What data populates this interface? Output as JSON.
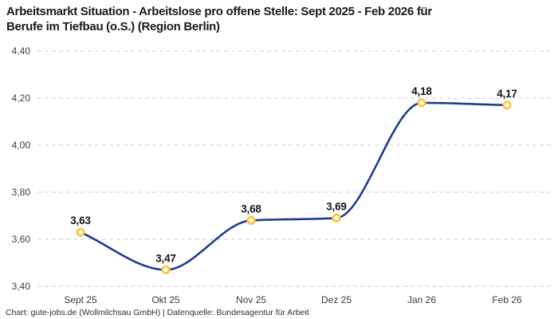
{
  "header": {
    "title_line1": "Arbeitsmarkt Situation - Arbeitslose pro offene Stelle: Sept 2025 - Feb 2026 für",
    "title_line2": "Berufe im Tiefbau (o.S.) (Region Berlin)"
  },
  "footer": {
    "credit": "Chart: gute-jobs.de (Wollmilchsau GmbH) | Datenquelle: Bundesagentur für Arbeit"
  },
  "chart_data": {
    "type": "line",
    "title": "Arbeitsmarkt Situation - Arbeitslose pro offene Stelle: Sept 2025 - Feb 2026 für Berufe im Tiefbau (o.S.) (Region Berlin)",
    "categories": [
      "Sept 25",
      "Okt 25",
      "Nov 25",
      "Dez 25",
      "Jan 26",
      "Feb 26"
    ],
    "values": [
      3.63,
      3.47,
      3.68,
      3.69,
      4.18,
      4.17
    ],
    "value_labels": [
      "3,63",
      "3,47",
      "3,68",
      "3,69",
      "4,18",
      "4,17"
    ],
    "xlabel": "",
    "ylabel": "",
    "ylim": [
      3.4,
      4.4
    ],
    "yticks": [
      3.4,
      3.6,
      3.8,
      4.0,
      4.2,
      4.4
    ],
    "ytick_labels": [
      "3,40",
      "3,60",
      "3,80",
      "4,00",
      "4,20",
      "4,40"
    ],
    "grid": "horizontal-dashed",
    "legend": "none",
    "line_interpolation": "smooth-monotone",
    "colors": {
      "line": "#1E3C96",
      "marker_ring": "#FFC53D",
      "marker_fill": "#FFFFFF",
      "gridline": "#CCCCCC",
      "tick_text": "#3D3D3D",
      "point_label_text": "#161616",
      "title_text": "#1A1A1A"
    }
  }
}
